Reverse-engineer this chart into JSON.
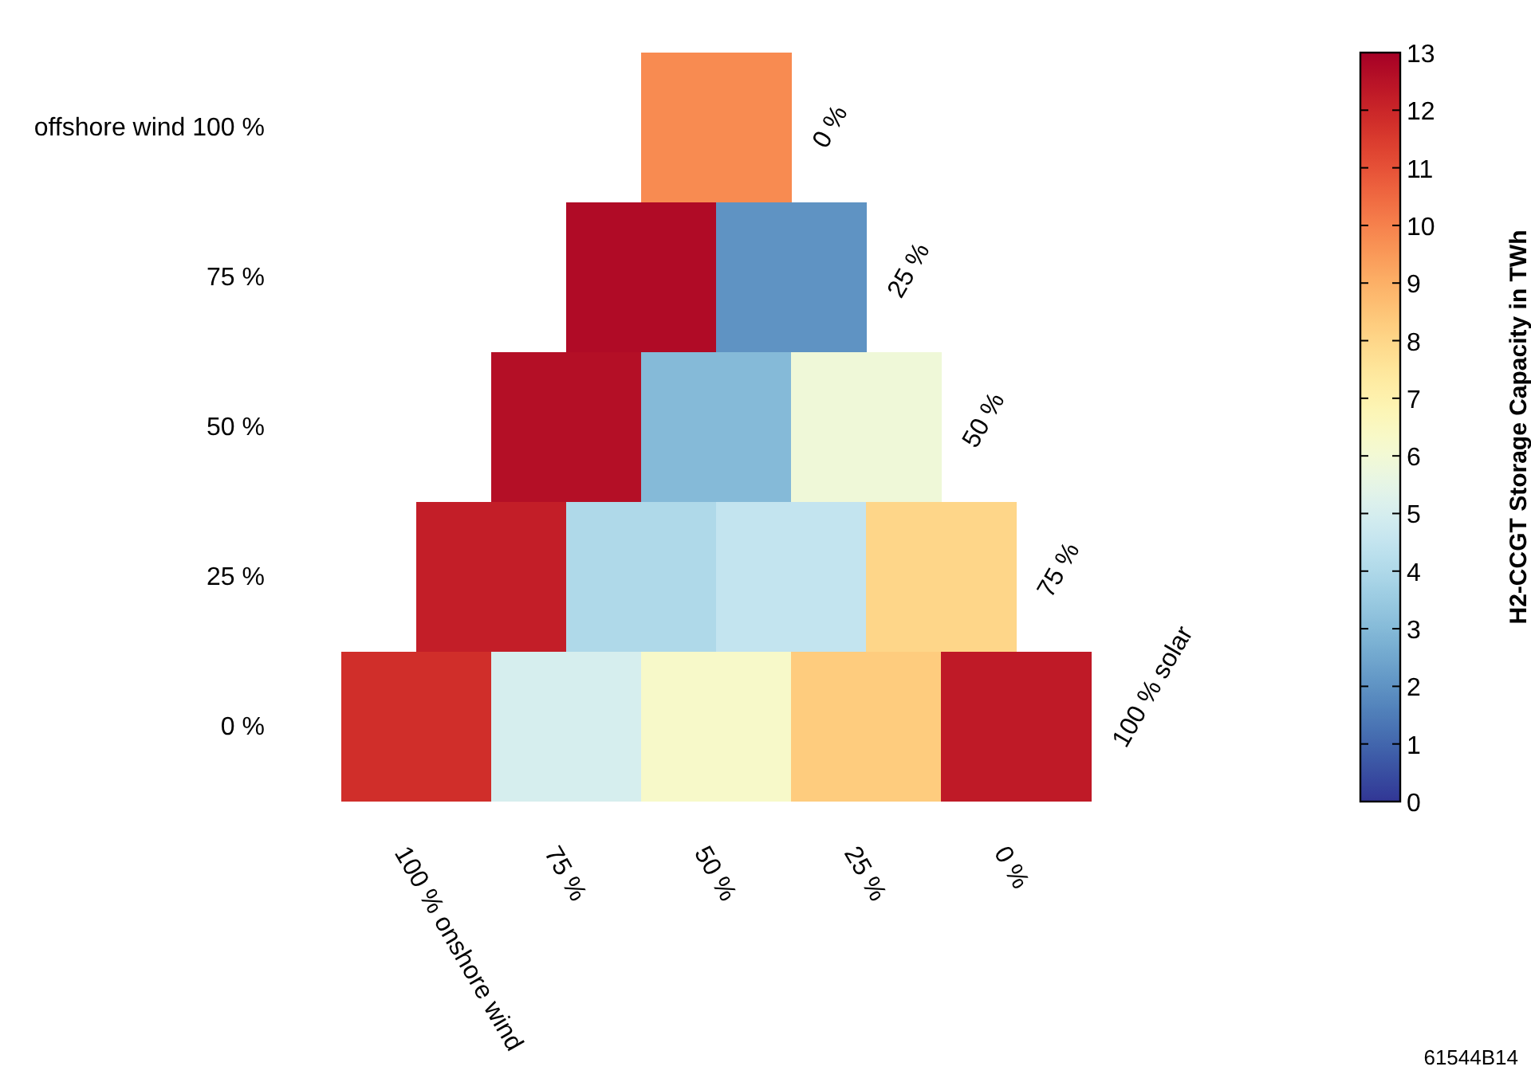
{
  "chart_data": {
    "type": "heatmap",
    "categories": [
      "100 % onshore wind",
      null,
      "75 %",
      null,
      "50 %",
      null,
      "25 %",
      null,
      "0 %",
      null
    ],
    "y_categories": [
      "offshore wind 100 %",
      "75 %",
      "50 %",
      "25 %",
      "0 %"
    ],
    "y2_categories": [
      "0 %",
      "25 %",
      "50 %",
      "75 %",
      "100 % solar"
    ],
    "cells": [
      [
        null,
        null,
        null,
        null,
        9.8,
        9.8,
        null,
        null,
        null,
        null
      ],
      [
        null,
        null,
        null,
        12.7,
        12.7,
        2.0,
        2.0,
        null,
        null,
        null
      ],
      [
        null,
        null,
        12.6,
        12.6,
        3.0,
        3.0,
        5.9,
        5.9,
        null,
        null
      ],
      [
        null,
        12.2,
        12.2,
        4.0,
        4.0,
        4.5,
        4.5,
        8.0,
        8.0,
        null
      ],
      [
        11.8,
        11.8,
        5.0,
        5.0,
        6.3,
        6.3,
        8.3,
        8.3,
        12.3,
        12.3
      ]
    ],
    "clim": [
      0,
      13
    ],
    "cticks": [
      0,
      1,
      2,
      3,
      4,
      5,
      6,
      7,
      8,
      9,
      10,
      11,
      12,
      13
    ],
    "clabel": "H2-CCGT Storage Capacity in TWh",
    "annotations": [
      "61544B14"
    ]
  }
}
